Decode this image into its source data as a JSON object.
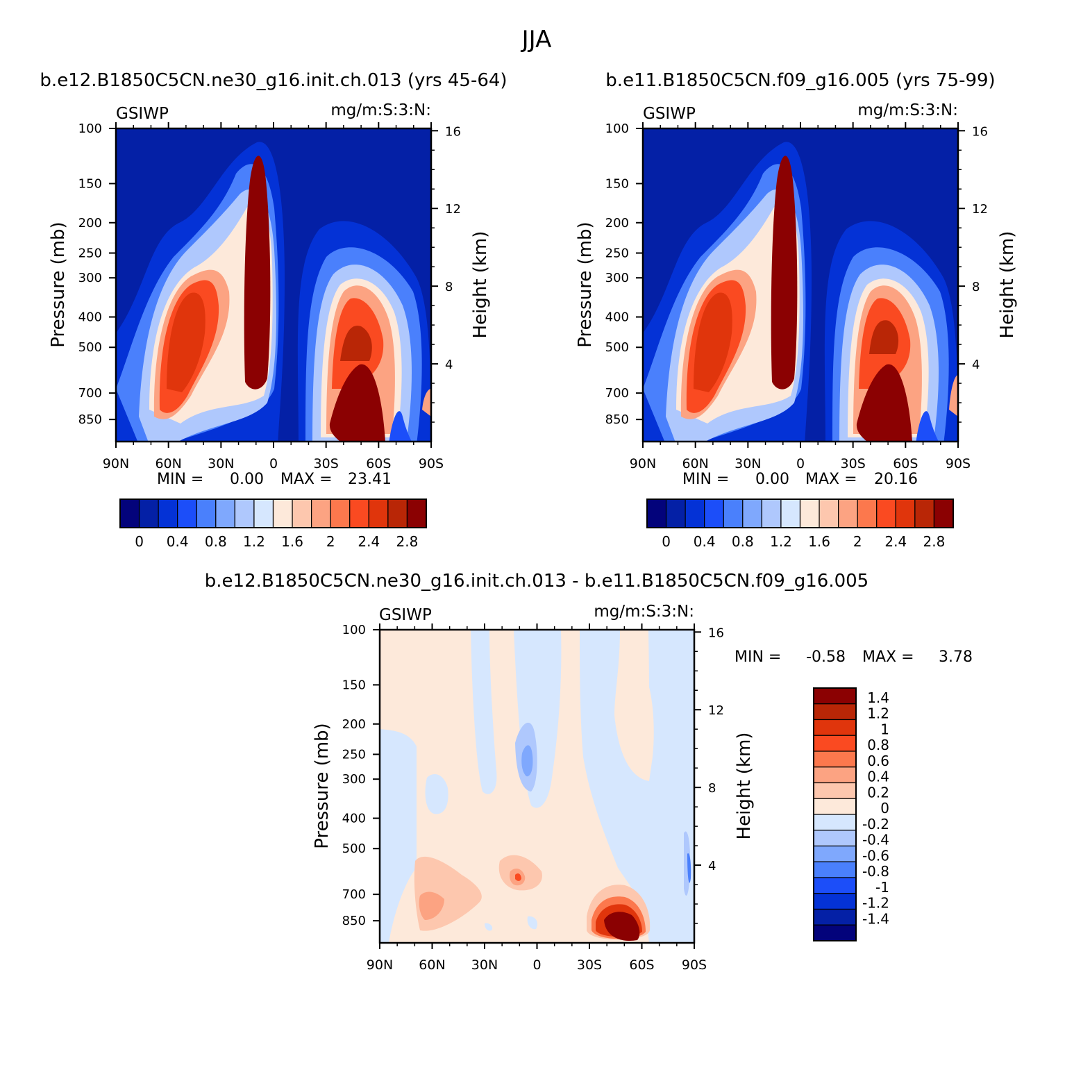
{
  "figure": {
    "title": "JJA"
  },
  "chart_data": [
    {
      "type": "heatmap",
      "title": "b.e12.B1850C5CN.ne30_g16.init.ch.013 (yrs 45-64)",
      "left_label": "GSIWP",
      "right_label": "mg/m:S:3:N:",
      "ylabel": "Pressure (mb)",
      "y2label": "Height (km)",
      "x_ticks": [
        "90N",
        "60N",
        "30N",
        "0",
        "30S",
        "60S",
        "90S"
      ],
      "y_ticks": [
        100,
        150,
        200,
        250,
        300,
        400,
        500,
        700,
        850
      ],
      "y2_ticks": [
        16,
        12,
        8,
        4
      ],
      "ylim": [
        100,
        1000
      ],
      "min_label": "MIN =",
      "min": "0.00",
      "max_label": "MAX =",
      "max": "23.41",
      "colorbar": {
        "orientation": "horizontal",
        "colors": [
          "#03037b",
          "#0420a6",
          "#0432d6",
          "#1c4ef9",
          "#4a80fc",
          "#7fa8fd",
          "#afc8fd",
          "#d6e7fe",
          "#fde9da",
          "#fdc7ae",
          "#fca382",
          "#fc784d",
          "#fa4a21",
          "#e0350c",
          "#b92606",
          "#8b0102"
        ],
        "labels": [
          "0",
          "0.4",
          "0.8",
          "1.2",
          "1.6",
          "2",
          "2.4",
          "2.8"
        ]
      }
    },
    {
      "type": "heatmap",
      "title": "b.e11.B1850C5CN.f09_g16.005 (yrs 75-99)",
      "left_label": "GSIWP",
      "right_label": "mg/m:S:3:N:",
      "ylabel": "Pressure (mb)",
      "y2label": "Height (km)",
      "x_ticks": [
        "90N",
        "60N",
        "30N",
        "0",
        "30S",
        "60S",
        "90S"
      ],
      "y_ticks": [
        100,
        150,
        200,
        250,
        300,
        400,
        500,
        700,
        850
      ],
      "y2_ticks": [
        16,
        12,
        8,
        4
      ],
      "ylim": [
        100,
        1000
      ],
      "min_label": "MIN =",
      "min": "0.00",
      "max_label": "MAX =",
      "max": "20.16",
      "colorbar": {
        "orientation": "horizontal",
        "colors": [
          "#03037b",
          "#0420a6",
          "#0432d6",
          "#1c4ef9",
          "#4a80fc",
          "#7fa8fd",
          "#afc8fd",
          "#d6e7fe",
          "#fde9da",
          "#fdc7ae",
          "#fca382",
          "#fc784d",
          "#fa4a21",
          "#e0350c",
          "#b92606",
          "#8b0102"
        ],
        "labels": [
          "0",
          "0.4",
          "0.8",
          "1.2",
          "1.6",
          "2",
          "2.4",
          "2.8"
        ]
      }
    },
    {
      "type": "heatmap",
      "title": "b.e12.B1850C5CN.ne30_g16.init.ch.013 - b.e11.B1850C5CN.f09_g16.005",
      "left_label": "GSIWP",
      "right_label": "mg/m:S:3:N:",
      "ylabel": "Pressure (mb)",
      "y2label": "Height (km)",
      "x_ticks": [
        "90N",
        "60N",
        "30N",
        "0",
        "30S",
        "60S",
        "90S"
      ],
      "y_ticks": [
        100,
        150,
        200,
        250,
        300,
        400,
        500,
        700,
        850
      ],
      "y2_ticks": [
        16,
        12,
        8,
        4
      ],
      "ylim": [
        100,
        1000
      ],
      "min_label": "MIN =",
      "min": "-0.58",
      "max_label": "MAX =",
      "max": "3.78",
      "colorbar": {
        "orientation": "vertical",
        "colors": [
          "#8b0102",
          "#b92606",
          "#e0350c",
          "#fa4a21",
          "#fc784d",
          "#fca382",
          "#fdc7ae",
          "#fde9da",
          "#d6e7fe",
          "#afc8fd",
          "#7fa8fd",
          "#4a80fc",
          "#1c4ef9",
          "#0432d6",
          "#0420a6",
          "#03037b"
        ],
        "labels": [
          "1.4",
          "1.2",
          "1",
          "0.8",
          "0.6",
          "0.4",
          "0.2",
          "0",
          "-0.2",
          "-0.4",
          "-0.6",
          "-0.8",
          "-1",
          "-1.2",
          "-1.4"
        ]
      }
    }
  ]
}
